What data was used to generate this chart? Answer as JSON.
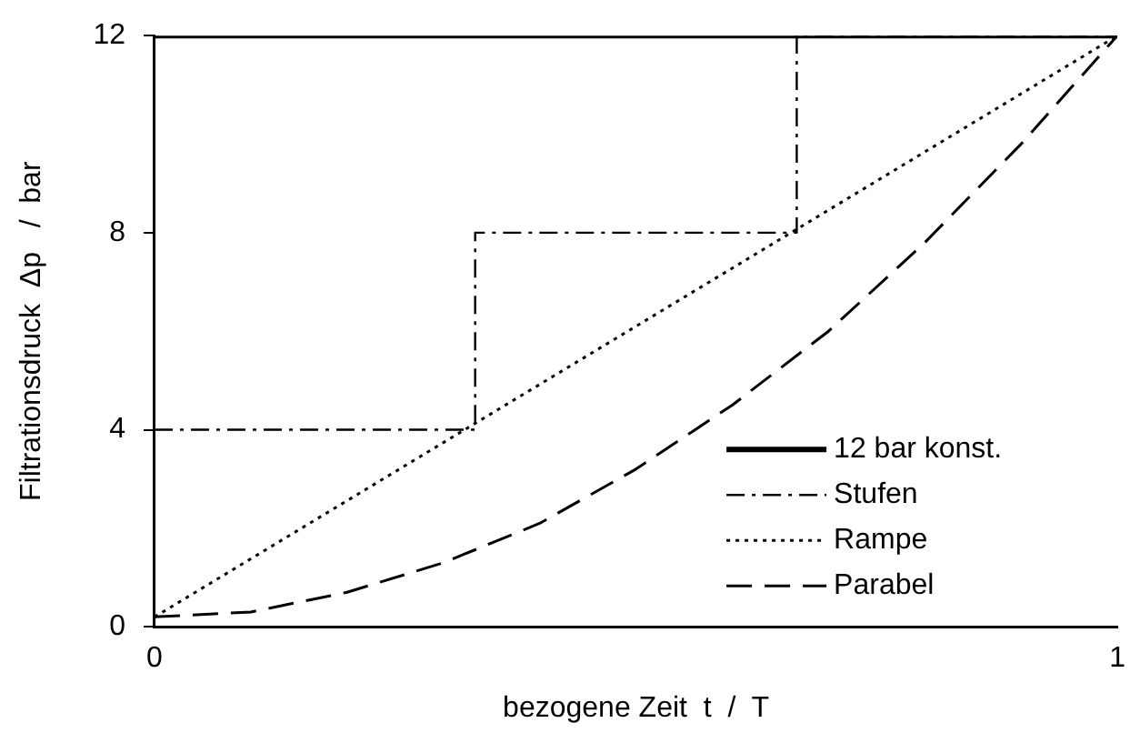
{
  "chart_data": {
    "type": "line",
    "xlabel": "bezogene Zeit  t  /  T",
    "ylabel": "Filtrationsdruck  Δp   /  bar",
    "xlim": [
      0,
      1
    ],
    "xticks": [
      0,
      1
    ],
    "ylim": [
      0,
      12
    ],
    "yticks": [
      0,
      4,
      8,
      12
    ],
    "grid": false,
    "legend": "bottom right",
    "marker": "none",
    "series": [
      {
        "name": "12 bar konst.",
        "color": "#000000",
        "line_style": "solid",
        "x": [
          0,
          1
        ],
        "values": [
          12,
          12
        ]
      },
      {
        "name": "Stufen",
        "color": "#000000",
        "line_style": "dashdot",
        "x": [
          0,
          0.333,
          0.333,
          0.667,
          0.667,
          1
        ],
        "values": [
          4,
          4,
          8,
          8,
          12,
          12
        ]
      },
      {
        "name": "Rampe",
        "color": "#000000",
        "line_style": "dotted",
        "x": [
          0,
          1
        ],
        "values": [
          0.2,
          12
        ]
      },
      {
        "name": "Parabel",
        "color": "#000000",
        "line_style": "dashed",
        "x": [
          0,
          0.1,
          0.2,
          0.3,
          0.4,
          0.5,
          0.6,
          0.7,
          0.8,
          0.9,
          1
        ],
        "values": [
          0.2,
          0.3,
          0.7,
          1.3,
          2.1,
          3.2,
          4.5,
          6.0,
          7.8,
          9.8,
          12
        ]
      }
    ]
  }
}
